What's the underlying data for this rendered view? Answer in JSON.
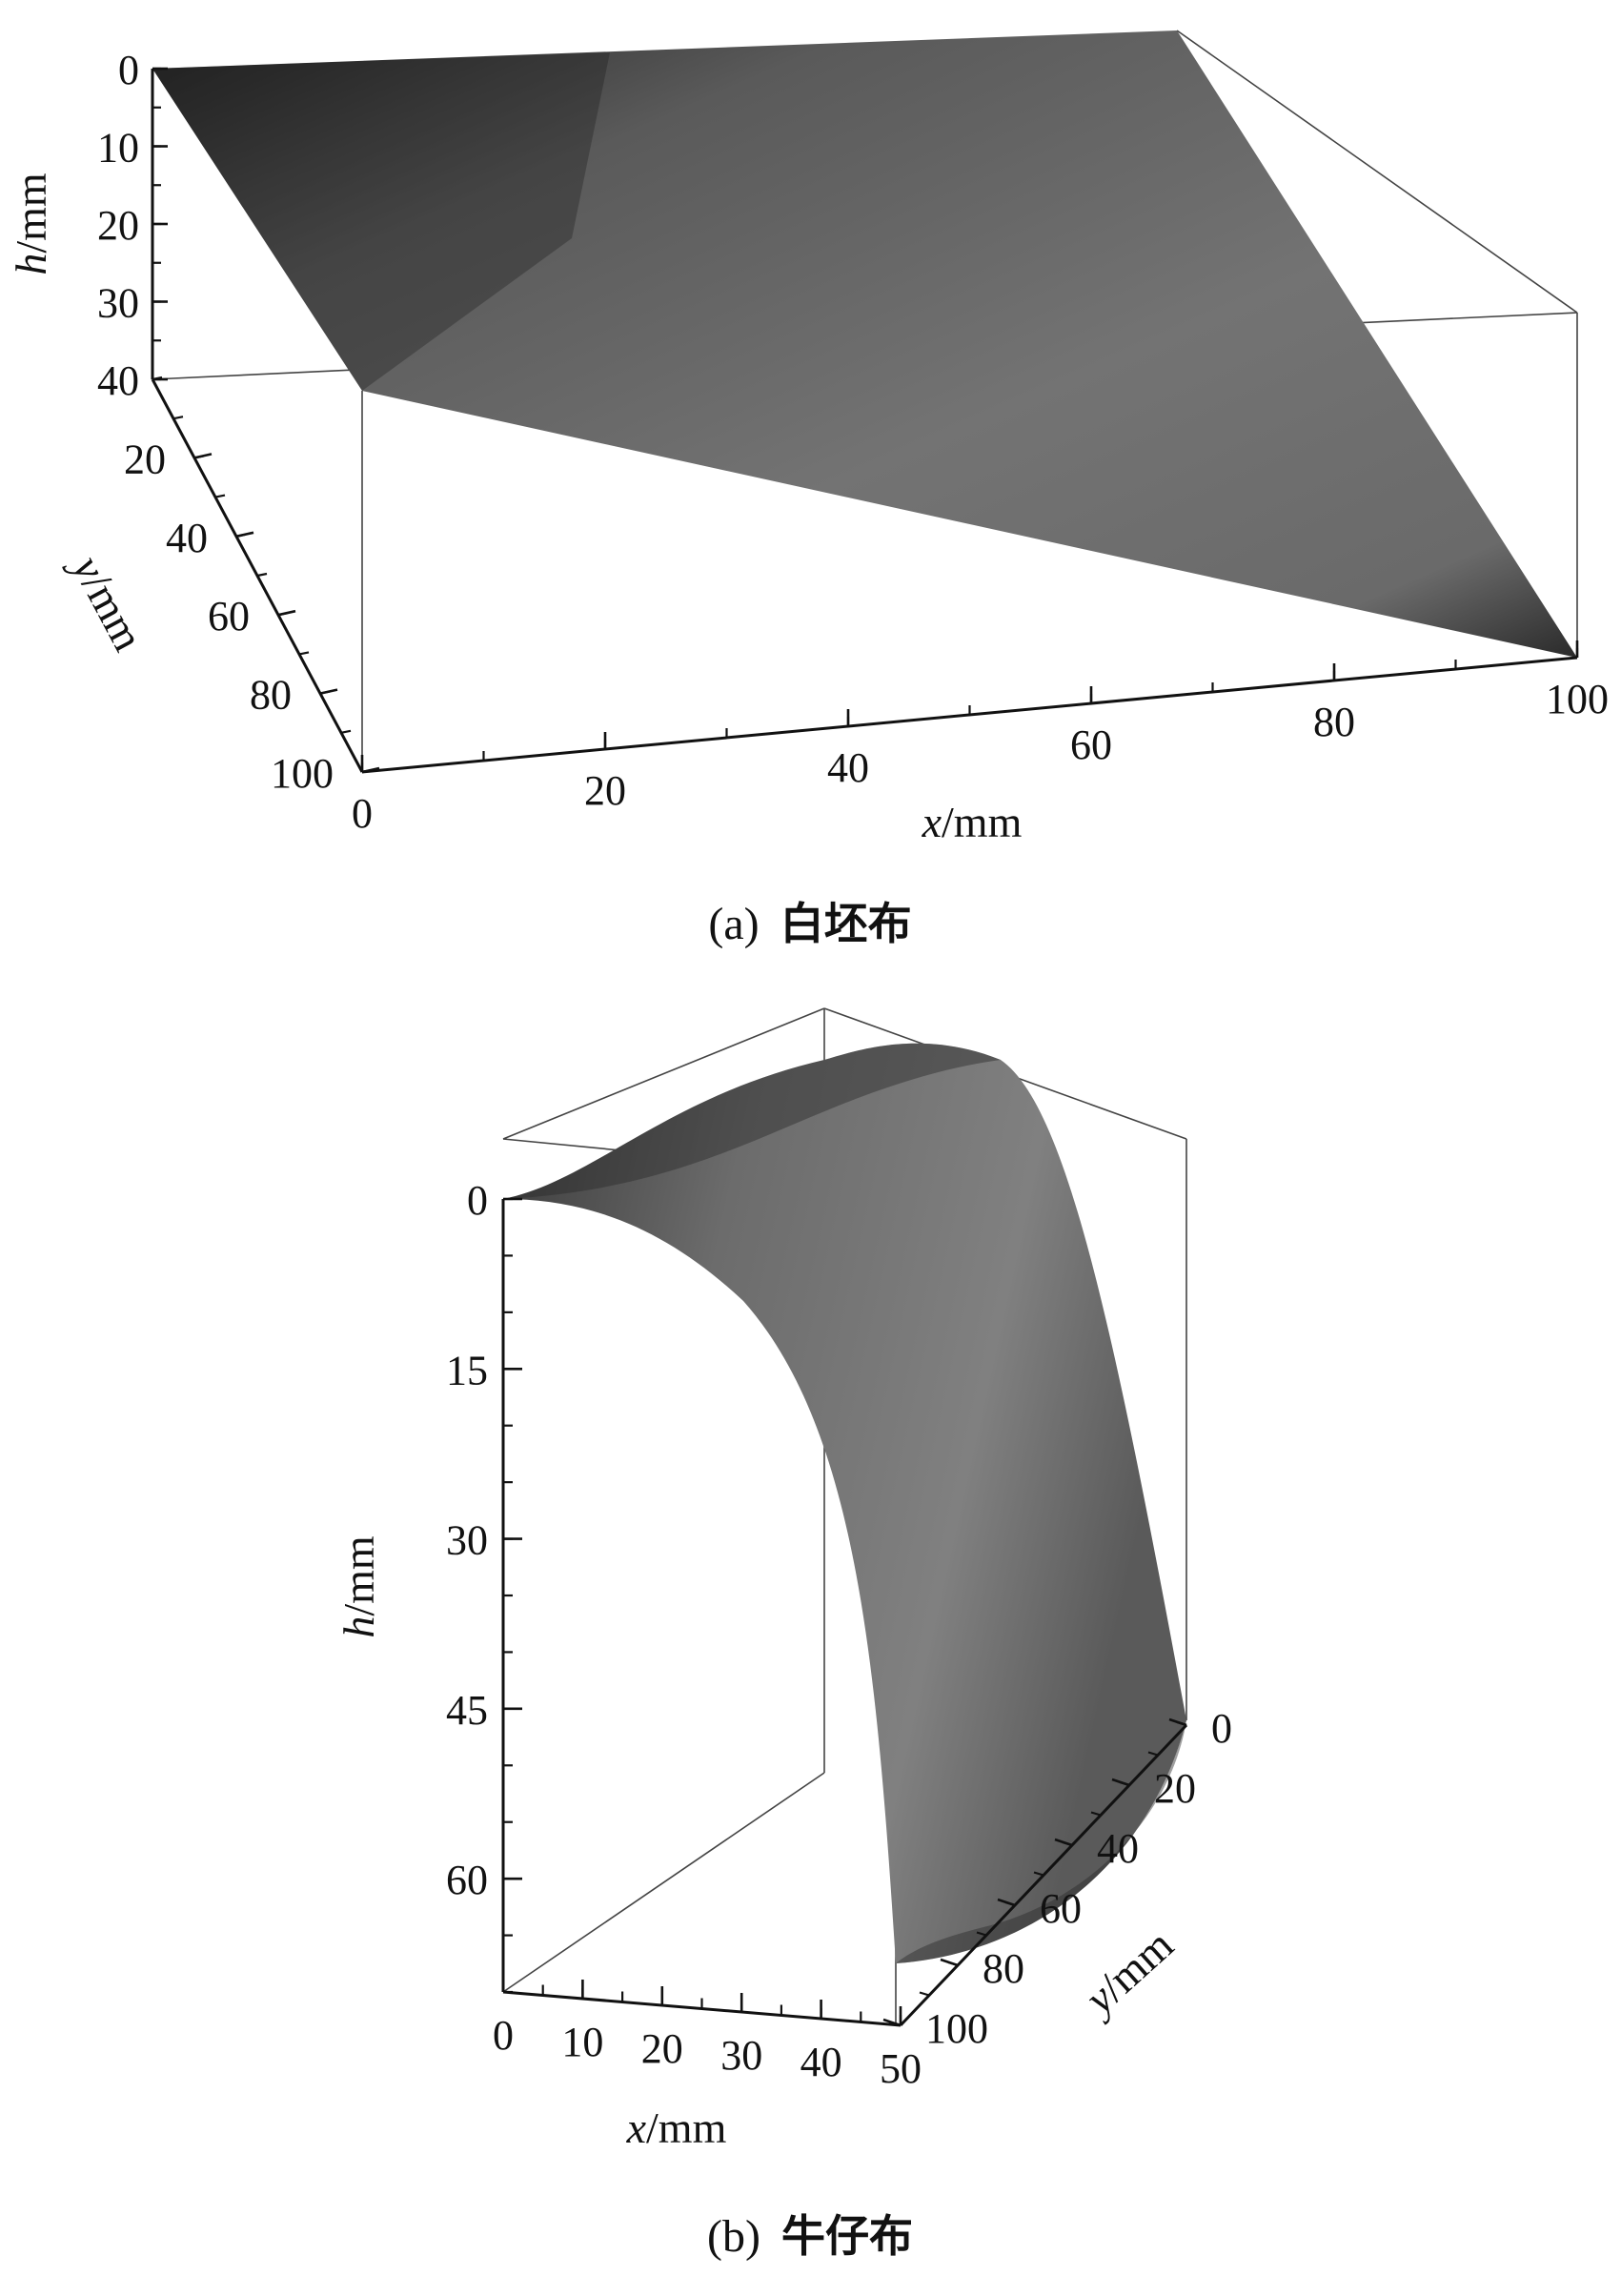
{
  "chart_data": [
    {
      "type": "surface3d",
      "caption_tag": "(a)",
      "caption_text": "白坯布",
      "x": {
        "var": "x",
        "unit": "/mm",
        "ticks": [
          "0",
          "20",
          "40",
          "60",
          "80",
          "100"
        ]
      },
      "y": {
        "var": "y",
        "unit": "/mm",
        "ticks": [
          "20",
          "40",
          "60",
          "80",
          "100"
        ]
      },
      "h": {
        "var": "h",
        "unit": "/mm",
        "ticks": [
          "0",
          "10",
          "20",
          "30",
          "40"
        ]
      },
      "xlim": [
        0,
        100
      ],
      "ylim": [
        0,
        100
      ],
      "hlim": [
        0,
        40
      ],
      "surface": "planar sheet from (x=0,y=0,h=0) and (x=100,y=100,h=0) sagging to h=40 at (x=0,y=100)"
    },
    {
      "type": "surface3d",
      "caption_tag": "(b)",
      "caption_text": "牛仔布",
      "x": {
        "var": "x",
        "unit": "/mm",
        "ticks": [
          "0",
          "10",
          "20",
          "30",
          "40",
          "50"
        ]
      },
      "y": {
        "var": "y",
        "unit": "/mm",
        "ticks": [
          "0",
          "20",
          "40",
          "60",
          "80",
          "100"
        ]
      },
      "h": {
        "var": "h",
        "unit": "/mm",
        "ticks": [
          "0",
          "15",
          "30",
          "45",
          "60"
        ]
      },
      "xlim": [
        0,
        50
      ],
      "ylim": [
        0,
        100
      ],
      "hlim": [
        0,
        70
      ],
      "surface": "curved sheet draping from h=0 at x=0 down to h≈70 at x=50 across all y"
    }
  ],
  "colors": {
    "surface_dark": "#2a2a2a",
    "surface_mid": "#6f6f6f",
    "surface_light": "#8a8a8a",
    "box_line": "#333333",
    "text": "#111111"
  }
}
